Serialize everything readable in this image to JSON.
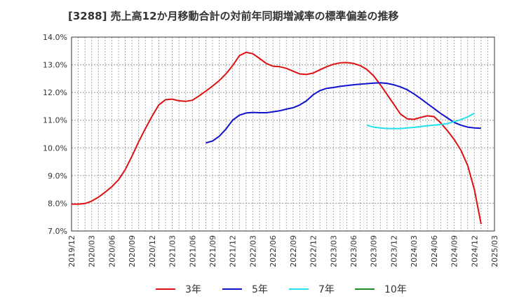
{
  "chart_data": {
    "type": "line",
    "title": "[3288]  売上高12か月移動合計の対前年同期増減率の標準偏差の推移",
    "xlabel": "",
    "ylabel": "",
    "ylim": [
      7.0,
      14.0
    ],
    "y_ticks": [
      "14.0%",
      "13.0%",
      "12.0%",
      "11.0%",
      "10.0%",
      "9.0%",
      "8.0%",
      "7.0%"
    ],
    "x_ticks": [
      "2019/12",
      "2020/03",
      "2020/06",
      "2020/09",
      "2020/12",
      "2021/03",
      "2021/06",
      "2021/09",
      "2021/12",
      "2022/03",
      "2022/06",
      "2022/09",
      "2022/12",
      "2023/03",
      "2023/06",
      "2023/09",
      "2023/12",
      "2024/03",
      "2024/06",
      "2024/09",
      "2024/12",
      "2025/03"
    ],
    "grid": true,
    "legend_position": "bottom",
    "series": [
      {
        "name": "3年",
        "color": "#dd1111",
        "start": "2019/12",
        "values": [
          7.97,
          7.97,
          7.99,
          8.08,
          8.22,
          8.4,
          8.6,
          8.85,
          9.22,
          9.7,
          10.22,
          10.7,
          11.15,
          11.55,
          11.74,
          11.76,
          11.7,
          11.68,
          11.72,
          11.88,
          12.05,
          12.23,
          12.43,
          12.67,
          12.97,
          13.33,
          13.45,
          13.4,
          13.23,
          13.05,
          12.95,
          12.93,
          12.87,
          12.77,
          12.67,
          12.65,
          12.7,
          12.82,
          12.93,
          13.02,
          13.07,
          13.08,
          13.05,
          12.97,
          12.83,
          12.6,
          12.28,
          11.93,
          11.58,
          11.22,
          11.05,
          11.03,
          11.1,
          11.16,
          11.13,
          10.9,
          10.62,
          10.3,
          9.92,
          9.37,
          8.5,
          7.25
        ]
      },
      {
        "name": "5年",
        "color": "#1111cc",
        "start": "2021/08",
        "values": [
          10.18,
          10.25,
          10.42,
          10.68,
          11.0,
          11.18,
          11.26,
          11.28,
          11.27,
          11.27,
          11.3,
          11.34,
          11.4,
          11.45,
          11.55,
          11.7,
          11.92,
          12.07,
          12.15,
          12.18,
          12.22,
          12.25,
          12.28,
          12.3,
          12.32,
          12.34,
          12.35,
          12.33,
          12.28,
          12.2,
          12.1,
          11.95,
          11.78,
          11.6,
          11.42,
          11.24,
          11.08,
          10.92,
          10.82,
          10.75,
          10.72,
          10.71
        ]
      },
      {
        "name": "7年",
        "color": "#22e0ee",
        "start": "2023/08",
        "values": [
          10.82,
          10.75,
          10.72,
          10.7,
          10.7,
          10.7,
          10.72,
          10.74,
          10.77,
          10.8,
          10.82,
          10.84,
          10.88,
          10.95,
          11.02,
          11.12,
          11.25
        ]
      },
      {
        "name": "10年",
        "color": "#228822",
        "start": "2024/12",
        "values": []
      }
    ]
  }
}
